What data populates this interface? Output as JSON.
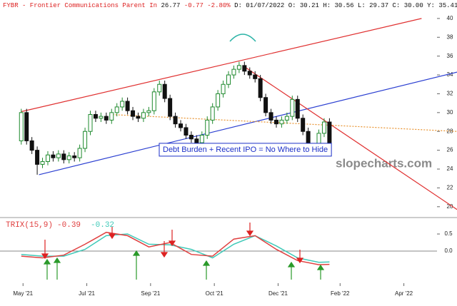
{
  "header": {
    "symbol": "FYBR - Frontier Communications Parent In",
    "last": "26.77",
    "change": "-0.77 -2.80%",
    "ohlc": "D: 01/07/2022 O: 30.21 H: 30.56 L: 29.37 C: 30.00 Y: 35.41"
  },
  "watermark": "slopecharts.com",
  "chart_data": [
    {
      "type": "candlestick",
      "annotation": "Debt Burden + Recent IPO = No Where to Hide",
      "up_color": "#1f8a2e",
      "down_color": "#111111",
      "xlim": [
        -12,
        246
      ],
      "ylim": [
        19,
        40.9
      ],
      "yticks": [
        20,
        22,
        24,
        26,
        28,
        30,
        32,
        34,
        36,
        38,
        40
      ],
      "xticks": [
        {
          "value": 1,
          "label": "May '21"
        },
        {
          "value": 37,
          "label": "Jul '21"
        },
        {
          "value": 73,
          "label": "Sep '21"
        },
        {
          "value": 109,
          "label": "Oct '21"
        },
        {
          "value": 145,
          "label": "Dec '21"
        },
        {
          "value": 180,
          "label": "Feb '22"
        },
        {
          "value": 216,
          "label": "Apr '22"
        }
      ],
      "x": [
        0,
        3,
        6,
        9,
        12,
        15,
        18,
        21,
        24,
        27,
        30,
        33,
        36,
        39,
        42,
        45,
        48,
        51,
        54,
        57,
        60,
        63,
        66,
        69,
        72,
        75,
        78,
        81,
        84,
        87,
        90,
        93,
        96,
        99,
        102,
        105,
        108,
        111,
        114,
        117,
        120,
        123,
        126,
        129,
        132,
        135,
        138,
        141,
        144,
        147,
        150,
        153,
        156,
        159,
        162,
        165,
        168,
        171,
        174
      ],
      "open": [
        27.0,
        30.0,
        27.0,
        26.0,
        24.5,
        24.8,
        25.5,
        25.2,
        25.6,
        25.0,
        25.4,
        25.2,
        26.2,
        28.0,
        29.8,
        29.4,
        29.6,
        29.2,
        30.0,
        30.6,
        31.2,
        30.2,
        29.6,
        29.4,
        30.0,
        30.2,
        32.2,
        33.0,
        31.5,
        29.6,
        28.8,
        28.4,
        27.6,
        27.2,
        26.8,
        27.6,
        29.2,
        30.6,
        32.0,
        33.0,
        34.0,
        34.6,
        35.0,
        34.4,
        34.0,
        33.6,
        31.6,
        30.0,
        29.2,
        28.8,
        29.2,
        29.6,
        31.4,
        29.4,
        28.0,
        26.2,
        26.0,
        27.8,
        29.0
      ],
      "high": [
        30.4,
        30.4,
        27.4,
        26.4,
        25.2,
        25.9,
        25.9,
        26.0,
        26.0,
        25.8,
        25.8,
        26.6,
        28.4,
        30.2,
        30.2,
        30.0,
        30.0,
        30.4,
        31.0,
        31.6,
        31.6,
        30.6,
        30.0,
        30.4,
        30.6,
        32.6,
        33.4,
        33.4,
        31.9,
        30.0,
        29.2,
        28.8,
        28.0,
        27.6,
        28.0,
        29.6,
        31.0,
        32.4,
        33.4,
        34.4,
        35.0,
        35.4,
        35.4,
        34.8,
        34.4,
        34.0,
        32.0,
        30.4,
        29.6,
        29.6,
        30.0,
        31.8,
        31.8,
        29.8,
        28.4,
        26.6,
        28.2,
        29.4,
        29.4
      ],
      "low": [
        26.6,
        26.6,
        25.6,
        23.4,
        24.1,
        24.4,
        24.8,
        24.8,
        24.6,
        24.6,
        24.8,
        24.8,
        25.8,
        27.6,
        29.0,
        29.0,
        28.8,
        28.8,
        29.6,
        30.2,
        29.8,
        29.2,
        29.0,
        29.0,
        29.6,
        29.8,
        31.8,
        31.1,
        29.2,
        28.4,
        28.0,
        27.2,
        26.8,
        26.4,
        26.4,
        27.2,
        28.8,
        30.2,
        31.6,
        32.6,
        33.6,
        34.2,
        34.0,
        33.6,
        33.2,
        31.2,
        29.6,
        28.8,
        28.4,
        28.4,
        28.8,
        29.2,
        29.0,
        27.6,
        25.8,
        25.6,
        25.6,
        27.4,
        26.4
      ],
      "close": [
        30.0,
        27.0,
        26.0,
        24.5,
        24.8,
        25.5,
        25.2,
        25.6,
        25.0,
        25.4,
        25.2,
        26.2,
        28.0,
        29.8,
        29.4,
        29.6,
        29.2,
        30.0,
        30.6,
        31.2,
        30.2,
        29.6,
        29.4,
        30.0,
        30.2,
        32.2,
        33.0,
        31.5,
        29.6,
        28.8,
        28.4,
        27.6,
        27.2,
        26.8,
        27.6,
        29.2,
        30.6,
        32.0,
        33.0,
        34.0,
        34.6,
        35.0,
        34.4,
        34.0,
        33.6,
        31.6,
        30.0,
        29.2,
        28.8,
        29.2,
        29.6,
        31.4,
        29.4,
        28.0,
        26.2,
        26.0,
        27.8,
        29.0,
        26.8
      ],
      "trendlines": [
        {
          "color": "#e03030",
          "dash": false,
          "x": [
            0,
            226
          ],
          "values": [
            30.1,
            40.0
          ]
        },
        {
          "color": "#2b3fd1",
          "dash": false,
          "x": [
            10,
            246
          ],
          "values": [
            23.4,
            34.3
          ]
        },
        {
          "color": "#e03030",
          "dash": false,
          "x": [
            125,
            246
          ],
          "values": [
            35.0,
            19.7
          ]
        },
        {
          "color": "#e8922e",
          "dash": true,
          "x": [
            50,
            246
          ],
          "values": [
            29.8,
            28.0
          ]
        }
      ]
    },
    {
      "type": "line",
      "title": "TRIX(15,9)",
      "xlim": [
        -12,
        246
      ],
      "ylim": [
        -0.9,
        0.94
      ],
      "yticks": [
        0.5,
        {
          "value": 0,
          "label": "0.0"
        }
      ],
      "x": [
        0,
        12,
        24,
        36,
        48,
        60,
        72,
        84,
        96,
        108,
        120,
        132,
        144,
        156,
        168,
        174
      ],
      "series": [
        {
          "color": "#e04040",
          "last_label": "-0.39",
          "values": [
            -0.15,
            -0.2,
            -0.12,
            0.2,
            0.55,
            0.45,
            0.12,
            0.25,
            -0.1,
            -0.15,
            0.35,
            0.45,
            0.05,
            -0.28,
            -0.4,
            -0.39
          ]
        },
        {
          "color": "#3fc9b8",
          "last_label": "-0.32",
          "values": [
            -0.1,
            -0.15,
            -0.15,
            0.05,
            0.45,
            0.5,
            0.2,
            0.18,
            0.05,
            -0.2,
            0.2,
            0.45,
            0.15,
            -0.2,
            -0.33,
            -0.32
          ]
        }
      ]
    }
  ]
}
